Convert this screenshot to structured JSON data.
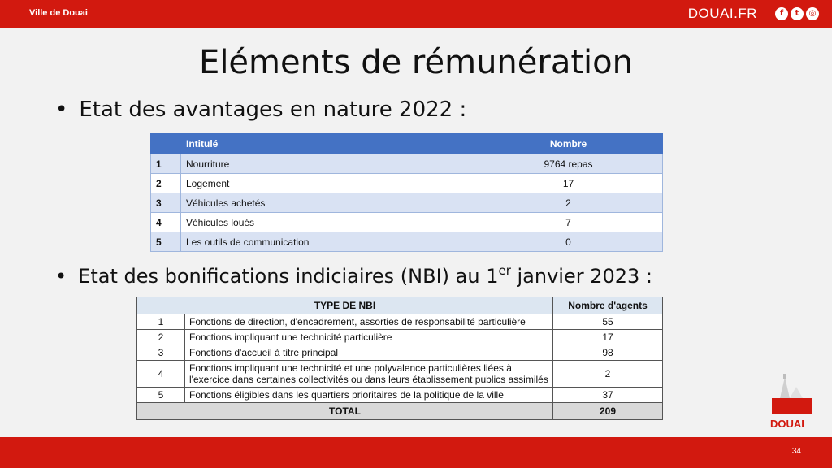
{
  "header": {
    "left_brand": "Ville de Douai",
    "right_brand": "DOUAI.FR",
    "social": [
      "f",
      "t",
      "◎"
    ]
  },
  "title": "Eléments de rémunération",
  "bullet1": "Etat des avantages en nature 2022 :",
  "table1": {
    "headers": [
      "",
      "Intitulé",
      "Nombre"
    ],
    "rows": [
      {
        "idx": "1",
        "label": "Nourriture",
        "value": "9764 repas"
      },
      {
        "idx": "2",
        "label": "Logement",
        "value": "17"
      },
      {
        "idx": "3",
        "label": "Véhicules achetés",
        "value": "2"
      },
      {
        "idx": "4",
        "label": "Véhicules loués",
        "value": "7"
      },
      {
        "idx": "5",
        "label": "Les outils de communication",
        "value": "0"
      }
    ]
  },
  "bullet2": {
    "before": "Etat des bonifications indiciaires (NBI) au 1",
    "sup": "er",
    "after": " janvier 2023 :"
  },
  "table2": {
    "headers": [
      "TYPE DE NBI",
      "Nombre d'agents"
    ],
    "rows": [
      {
        "idx": "1",
        "label": "Fonctions de direction, d'encadrement, assorties de responsabilité  particulière",
        "value": "55"
      },
      {
        "idx": "2",
        "label": "Fonctions impliquant une technicité particulière",
        "value": "17"
      },
      {
        "idx": "3",
        "label": "Fonctions d'accueil à titre principal",
        "value": "98"
      },
      {
        "idx": "4",
        "label": "Fonctions impliquant une technicité et une polyvalence particulières liées à l'exercice dans certaines collectivités ou dans leurs établissement publics assimilés",
        "value": "2"
      },
      {
        "idx": "5",
        "label": "Fonctions éligibles dans les quartiers prioritaires de la politique de la ville",
        "value": "37"
      }
    ],
    "total_label": "TOTAL",
    "total_value": "209"
  },
  "logo_text": "DOUAI",
  "page_number": "34",
  "colors": {
    "brand_red": "#d2190f",
    "table_blue": "#4472c4",
    "row_alt": "#d9e2f3"
  }
}
